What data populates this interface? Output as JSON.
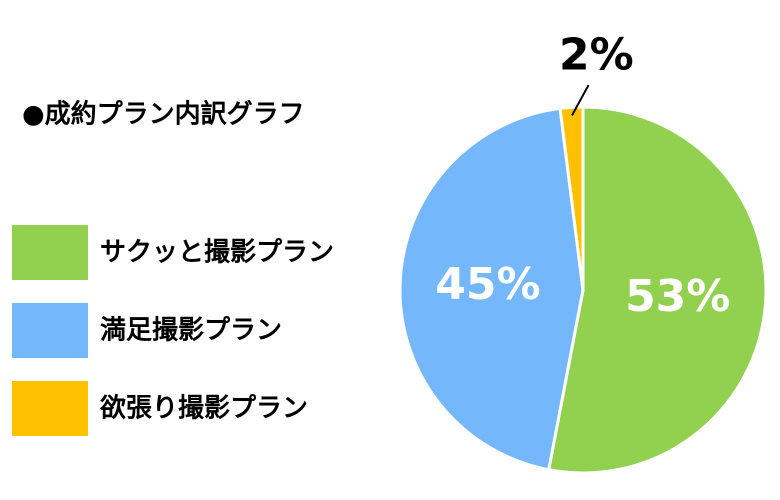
{
  "chart_data": {
    "type": "pie",
    "title": "●成約プラン内訳グラフ",
    "categories": [
      "サクッと撮影プラン",
      "満足撮影プラン",
      "欲張り撮影プラン"
    ],
    "values": [
      53,
      45,
      2
    ],
    "value_labels": [
      "53%",
      "45%",
      "2%"
    ],
    "colors": [
      "#92d050",
      "#74b7fb",
      "#ffc000"
    ]
  }
}
